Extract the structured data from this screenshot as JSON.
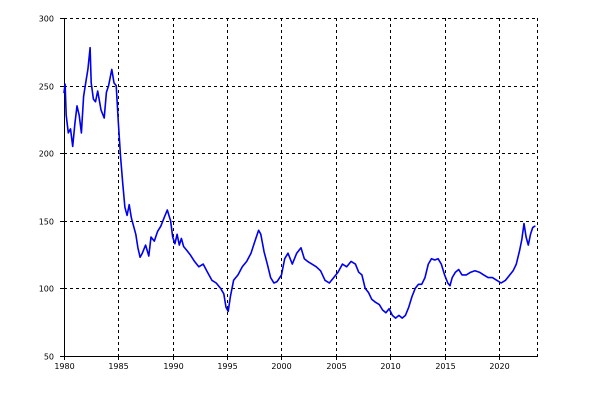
{
  "chart_data": {
    "type": "line",
    "title": "",
    "xlabel": "",
    "ylabel": "",
    "xlim": [
      1980,
      2023.5
    ],
    "ylim": [
      50,
      300
    ],
    "x_ticks": [
      1980,
      1985,
      1990,
      1995,
      2000,
      2005,
      2010,
      2015,
      2020
    ],
    "x_tick_labels": [
      "1980",
      "1985",
      "1990",
      "1995",
      "2000",
      "2005",
      "2010",
      "2015",
      "2020"
    ],
    "y_ticks": [
      50,
      100,
      150,
      200,
      250,
      300
    ],
    "y_tick_labels": [
      "50",
      "100",
      "150",
      "200",
      "250",
      "300"
    ],
    "grid": true,
    "line_color": "#0000ee",
    "series": [
      {
        "x": [
          1980.0,
          1980.1,
          1980.2,
          1980.4,
          1980.6,
          1980.8,
          1981.0,
          1981.2,
          1981.4,
          1981.6,
          1981.8,
          1982.0,
          1982.2,
          1982.4,
          1982.5,
          1982.7,
          1982.9,
          1983.1,
          1983.4,
          1983.7,
          1983.9,
          1984.1,
          1984.4,
          1984.6,
          1984.8,
          1985.0,
          1985.2,
          1985.4,
          1985.6,
          1985.8,
          1986.0,
          1986.2,
          1986.4,
          1986.6,
          1986.8,
          1987.0,
          1987.2,
          1987.5,
          1987.8,
          1988.0,
          1988.3,
          1988.6,
          1988.9,
          1989.2,
          1989.5,
          1989.8,
          1990.0,
          1990.2,
          1990.4,
          1990.6,
          1990.8,
          1991.0,
          1991.3,
          1991.6,
          1992.0,
          1992.4,
          1992.8,
          1993.2,
          1993.6,
          1994.0,
          1994.4,
          1994.7,
          1994.9,
          1995.1,
          1995.3,
          1995.6,
          1996.0,
          1996.4,
          1996.8,
          1997.2,
          1997.6,
          1997.9,
          1998.1,
          1998.4,
          1998.7,
          1999.0,
          1999.3,
          1999.6,
          2000.0,
          2000.3,
          2000.6,
          2001.0,
          2001.4,
          2001.8,
          2002.1,
          2002.4,
          2002.8,
          2003.2,
          2003.6,
          2004.0,
          2004.4,
          2004.8,
          2005.2,
          2005.6,
          2006.0,
          2006.4,
          2006.8,
          2007.1,
          2007.4,
          2007.7,
          2008.0,
          2008.3,
          2008.6,
          2009.0,
          2009.3,
          2009.6,
          2009.9,
          2010.2,
          2010.5,
          2010.8,
          2011.1,
          2011.4,
          2011.7,
          2012.0,
          2012.3,
          2012.6,
          2012.9,
          2013.2,
          2013.5,
          2013.8,
          2014.1,
          2014.4,
          2014.7,
          2015.0,
          2015.3,
          2015.5,
          2015.7,
          2016.0,
          2016.3,
          2016.6,
          2017.0,
          2017.4,
          2017.8,
          2018.2,
          2018.6,
          2019.0,
          2019.4,
          2019.8,
          2020.2,
          2020.6,
          2021.0,
          2021.3,
          2021.6,
          2021.9,
          2022.1,
          2022.3,
          2022.5,
          2022.7,
          2022.9,
          2023.1,
          2023.3
        ],
        "y": [
          245,
          251,
          228,
          215,
          218,
          205,
          222,
          235,
          228,
          215,
          242,
          252,
          262,
          278,
          252,
          240,
          238,
          246,
          232,
          226,
          245,
          250,
          262,
          252,
          250,
          222,
          198,
          178,
          160,
          154,
          162,
          152,
          146,
          140,
          130,
          123,
          126,
          132,
          124,
          138,
          135,
          142,
          146,
          152,
          158,
          150,
          138,
          133,
          140,
          132,
          137,
          131,
          128,
          125,
          120,
          116,
          118,
          112,
          106,
          104,
          100,
          96,
          86,
          83,
          94,
          106,
          110,
          116,
          120,
          126,
          136,
          143,
          140,
          127,
          118,
          108,
          104,
          105,
          110,
          122,
          126,
          118,
          126,
          130,
          122,
          120,
          118,
          116,
          113,
          106,
          104,
          108,
          112,
          118,
          116,
          120,
          118,
          112,
          110,
          100,
          97,
          92,
          90,
          88,
          84,
          82,
          85,
          80,
          78,
          80,
          78,
          80,
          86,
          94,
          100,
          103,
          103,
          108,
          118,
          122,
          121,
          122,
          118,
          110,
          104,
          102,
          108,
          112,
          114,
          110,
          110,
          112,
          113,
          112,
          110,
          108,
          108,
          106,
          104,
          106,
          110,
          113,
          118,
          128,
          136,
          148,
          138,
          132,
          140,
          145,
          146
        ]
      }
    ]
  }
}
